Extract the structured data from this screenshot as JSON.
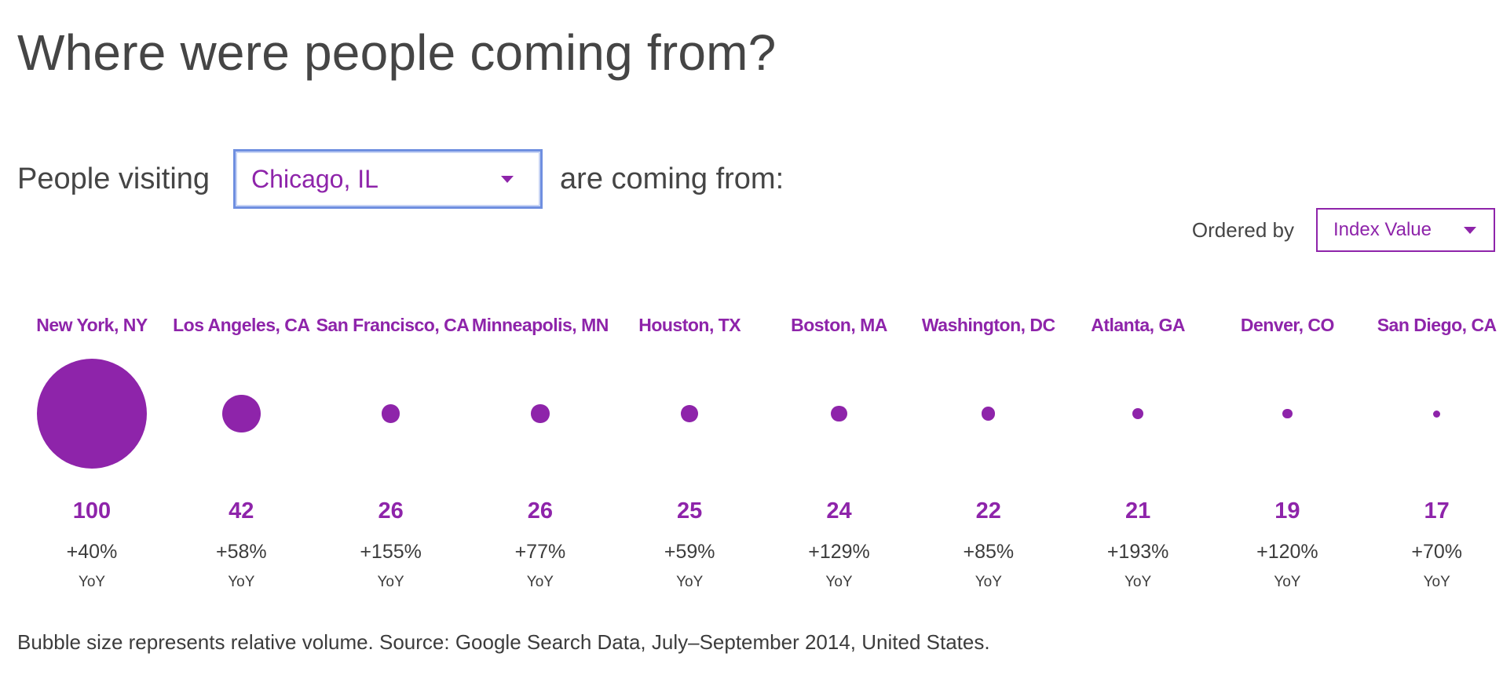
{
  "header": {
    "title": "Where were people coming from?"
  },
  "selector": {
    "prefix": "People visiting",
    "city": "Chicago, IL",
    "suffix": "are coming from:"
  },
  "ordering": {
    "label": "Ordered by",
    "value": "Index Value"
  },
  "chart_data": {
    "type": "bubble",
    "categories": [
      "New York, NY",
      "Los Angeles, CA",
      "San Francisco, CA",
      "Minneapolis, MN",
      "Houston, TX",
      "Boston, MA",
      "Washington, DC",
      "Atlanta, GA",
      "Denver, CO",
      "San Diego, CA"
    ],
    "series": [
      {
        "values": [
          100,
          42,
          26,
          26,
          25,
          24,
          22,
          21,
          19,
          17
        ]
      }
    ],
    "yoy": [
      "+40%",
      "+58%",
      "+155%",
      "+77%",
      "+59%",
      "+129%",
      "+85%",
      "+193%",
      "+120%",
      "+70%"
    ],
    "yoy_unit": "YoY",
    "relative_volume": [
      1.0,
      0.12,
      0.028,
      0.028,
      0.024,
      0.022,
      0.015,
      0.011,
      0.008,
      0.004
    ],
    "accent_color": "#8e24aa"
  },
  "footnote": "Bubble size represents relative volume. Source: Google Search Data, July–September 2014, United States."
}
